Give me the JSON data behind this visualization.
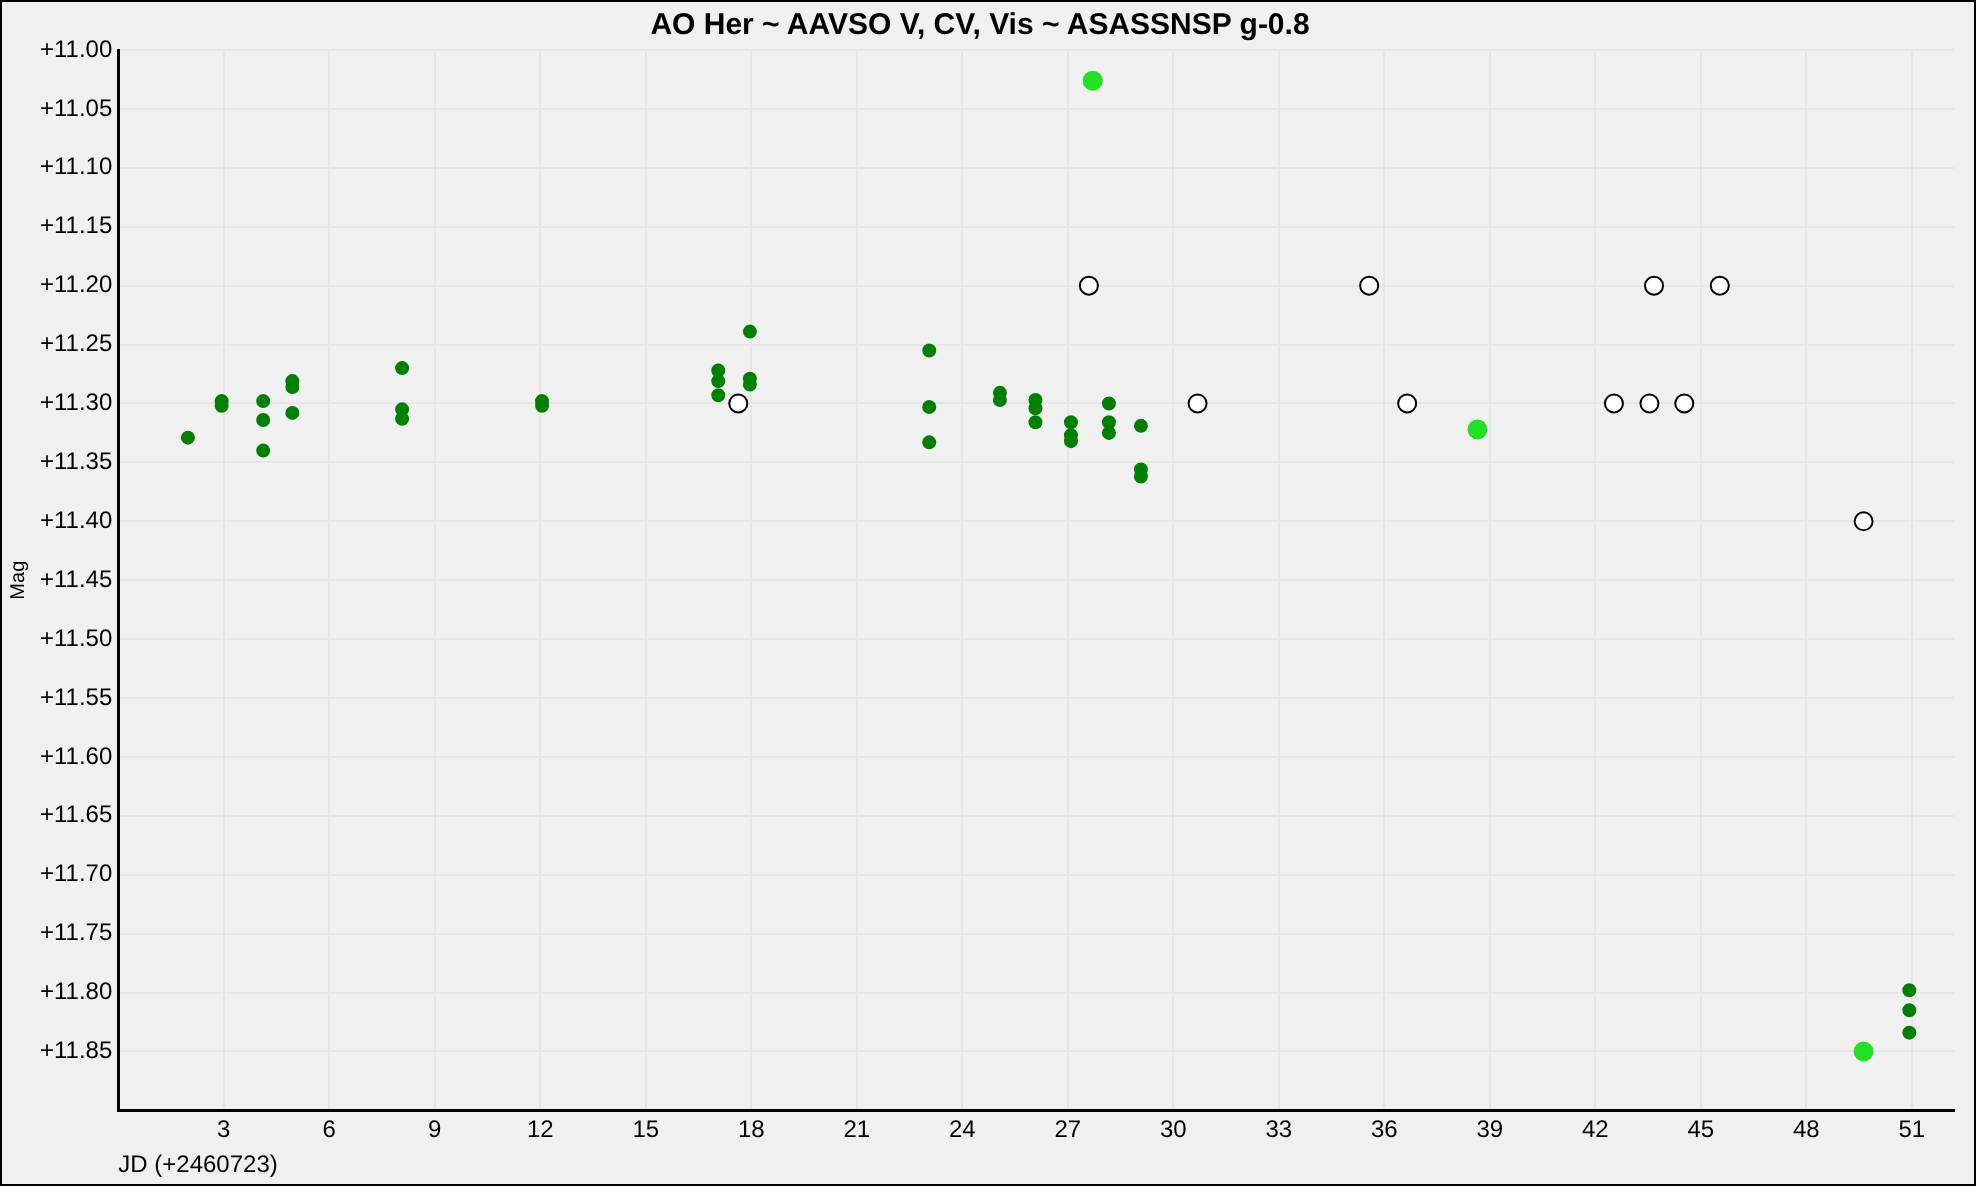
{
  "chart_data": {
    "type": "scatter",
    "title": "AO Her ~ AAVSO V, CV, Vis ~ ASASSNSP g-0.8",
    "xlabel": "JD (+2460723)",
    "ylabel": "Mag",
    "xlim": [
      0,
      52.2
    ],
    "xticks": [
      3,
      6,
      9,
      12,
      15,
      18,
      21,
      24,
      27,
      30,
      33,
      36,
      39,
      42,
      45,
      48,
      51
    ],
    "ylim": [
      11.9,
      11.0
    ],
    "yticks": [
      {
        "value": 11.0,
        "label": "+11.00"
      },
      {
        "value": 11.05,
        "label": "+11.05"
      },
      {
        "value": 11.1,
        "label": "+11.10"
      },
      {
        "value": 11.15,
        "label": "+11.15"
      },
      {
        "value": 11.2,
        "label": "+11.20"
      },
      {
        "value": 11.25,
        "label": "+11.25"
      },
      {
        "value": 11.3,
        "label": "+11.30"
      },
      {
        "value": 11.35,
        "label": "+11.35"
      },
      {
        "value": 11.4,
        "label": "+11.40"
      },
      {
        "value": 11.45,
        "label": "+11.45"
      },
      {
        "value": 11.5,
        "label": "+11.50"
      },
      {
        "value": 11.55,
        "label": "+11.55"
      },
      {
        "value": 11.6,
        "label": "+11.60"
      },
      {
        "value": 11.65,
        "label": "+11.65"
      },
      {
        "value": 11.7,
        "label": "+11.70"
      },
      {
        "value": 11.75,
        "label": "+11.75"
      },
      {
        "value": 11.8,
        "label": "+11.80"
      },
      {
        "value": 11.85,
        "label": "+11.85"
      }
    ],
    "grid": true,
    "legend": false,
    "marker": "circle",
    "series": [
      {
        "color": "#008000",
        "x": [
          1.98,
          2.94,
          2.94,
          4.12,
          4.12,
          4.12,
          4.95,
          4.95,
          4.95,
          8.07,
          8.07,
          8.07,
          12.05,
          12.05,
          17.06,
          17.06,
          17.06,
          17.96,
          17.96,
          17.96,
          23.06,
          23.06,
          23.06,
          25.07,
          25.07,
          26.08,
          26.08,
          26.08,
          27.09,
          27.09,
          27.09,
          28.17,
          28.17,
          28.17,
          29.08,
          29.08,
          29.08,
          50.93,
          50.93,
          50.93
        ],
        "values": [
          11.329,
          11.298,
          11.302,
          11.298,
          11.314,
          11.34,
          11.281,
          11.286,
          11.308,
          11.27,
          11.305,
          11.313,
          11.298,
          11.302,
          11.272,
          11.281,
          11.293,
          11.239,
          11.279,
          11.284,
          11.255,
          11.303,
          11.333,
          11.291,
          11.297,
          11.297,
          11.304,
          11.316,
          11.316,
          11.327,
          11.332,
          11.3,
          11.316,
          11.325,
          11.319,
          11.356,
          11.362,
          11.798,
          11.815,
          11.834
        ]
      },
      {
        "color": "#22e022",
        "x": [
          27.71,
          38.65,
          49.63
        ],
        "values": [
          11.026,
          11.322,
          11.85
        ]
      },
      {
        "color": "#000000",
        "x": [
          17.63,
          27.6,
          30.69,
          35.57,
          36.65,
          42.53,
          43.54,
          43.67,
          44.53,
          45.54,
          49.63
        ],
        "values": [
          11.3,
          11.2,
          11.3,
          11.2,
          11.3,
          11.3,
          11.3,
          11.2,
          11.3,
          11.2,
          11.4
        ]
      }
    ]
  }
}
